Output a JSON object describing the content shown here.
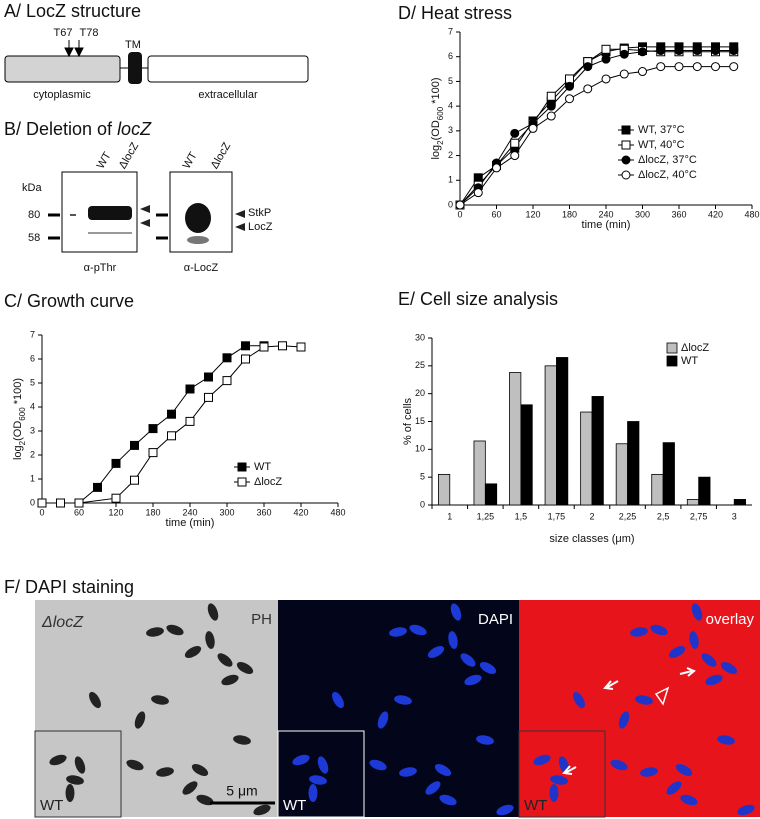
{
  "structure": {
    "title": "A/ LocZ structure",
    "sites": [
      "T67",
      "T78"
    ],
    "tm": "TM",
    "domains": [
      "cytoplasmic",
      "extracellular"
    ]
  },
  "deletion": {
    "title": "B/ Deletion of ",
    "title_gene": "locZ",
    "kda": "kDa",
    "markers": [
      "80",
      "58"
    ],
    "blots": [
      {
        "lanes": [
          "WT",
          "ΔlocZ"
        ],
        "antibody": "α-pThr"
      },
      {
        "lanes": [
          "WT",
          "ΔlocZ"
        ],
        "antibody": "α-LocZ"
      }
    ],
    "bands": [
      "StkP",
      "LocZ"
    ]
  },
  "dapi": {
    "title": "F/ DAPI staining",
    "strain": "ΔlocZ",
    "channels": [
      "PH",
      "DAPI",
      "overlay"
    ],
    "inset": "WT",
    "scale": "5 μm"
  },
  "chart_data": [
    {
      "type": "line",
      "title": "C/ Growth curve",
      "xlabel": "time (min)",
      "ylabel": [
        "log",
        "2",
        "(OD",
        "600",
        " *100)"
      ],
      "xlim": [
        0,
        480
      ],
      "xticks": [
        0,
        60,
        120,
        180,
        240,
        300,
        360,
        420,
        480
      ],
      "ylim": [
        0,
        7
      ],
      "yticks": [
        0,
        1,
        2,
        3,
        4,
        5,
        6,
        7
      ],
      "legend": "lower right",
      "series": [
        {
          "name": "WT",
          "color": "#000000",
          "marker": "square",
          "filled": true,
          "x": [
            0,
            30,
            60,
            90,
            120,
            150,
            180,
            210,
            240,
            270,
            300,
            330,
            360
          ],
          "values": [
            0,
            0,
            0,
            0.65,
            1.65,
            2.4,
            3.1,
            3.7,
            4.75,
            5.25,
            6.05,
            6.55,
            6.55
          ]
        },
        {
          "name": "ΔlocZ",
          "color": "#000000",
          "marker": "square",
          "filled": false,
          "x": [
            0,
            30,
            60,
            120,
            150,
            180,
            210,
            240,
            270,
            300,
            330,
            360,
            390,
            420
          ],
          "values": [
            0,
            0,
            0,
            0.2,
            0.95,
            2.1,
            2.8,
            3.4,
            4.4,
            5.1,
            6.0,
            6.5,
            6.55,
            6.5
          ]
        }
      ]
    },
    {
      "type": "line",
      "title": "D/ Heat stress",
      "xlabel": "time (min)",
      "ylabel": [
        "log",
        "2",
        "(OD",
        "600",
        " *100)"
      ],
      "xlim": [
        0,
        480
      ],
      "xticks": [
        0,
        60,
        120,
        180,
        240,
        300,
        360,
        420,
        480
      ],
      "ylim": [
        0,
        7
      ],
      "yticks": [
        0,
        1,
        2,
        3,
        4,
        5,
        6,
        7
      ],
      "legend": "right",
      "series": [
        {
          "name": "WT, 37°C",
          "color": "#000000",
          "marker": "square",
          "filled": true,
          "x": [
            0,
            30,
            60,
            90,
            120,
            150,
            180,
            210,
            240,
            270,
            300,
            330,
            360,
            390,
            420,
            450
          ],
          "values": [
            0,
            1.1,
            1.6,
            2.3,
            3.4,
            4.2,
            5.0,
            5.8,
            6.2,
            6.35,
            6.4,
            6.4,
            6.4,
            6.4,
            6.4,
            6.4
          ]
        },
        {
          "name": "WT, 40°C",
          "color": "#000000",
          "marker": "square",
          "filled": false,
          "x": [
            0,
            30,
            60,
            90,
            120,
            150,
            180,
            210,
            240,
            270,
            300,
            330,
            360,
            390,
            420,
            450
          ],
          "values": [
            0,
            0.8,
            1.6,
            2.5,
            3.3,
            4.4,
            5.1,
            5.8,
            6.3,
            6.3,
            6.25,
            6.2,
            6.2,
            6.2,
            6.2,
            6.2
          ]
        },
        {
          "name": "ΔlocZ, 37°C",
          "color": "#000000",
          "marker": "circle",
          "filled": true,
          "x": [
            0,
            30,
            60,
            90,
            120,
            150,
            180,
            210,
            240,
            270,
            300,
            330,
            360,
            390,
            420,
            450
          ],
          "values": [
            0,
            0.7,
            1.7,
            2.9,
            3.3,
            4.0,
            4.8,
            5.6,
            5.9,
            6.1,
            6.2,
            6.25,
            6.25,
            6.25,
            6.25,
            6.25
          ]
        },
        {
          "name": "ΔlocZ, 40°C",
          "color": "#000000",
          "marker": "circle",
          "filled": false,
          "x": [
            0,
            30,
            60,
            90,
            120,
            150,
            180,
            210,
            240,
            270,
            300,
            330,
            360,
            390,
            420,
            450
          ],
          "values": [
            0,
            0.5,
            1.5,
            2.0,
            3.1,
            3.6,
            4.3,
            4.7,
            5.1,
            5.3,
            5.4,
            5.6,
            5.6,
            5.6,
            5.6,
            5.6
          ]
        }
      ]
    },
    {
      "type": "bar",
      "title": "E/ Cell size analysis",
      "xlabel": "size classes (μm)",
      "ylabel": [
        "% of cells"
      ],
      "categories": [
        "1",
        "1,25",
        "1,5",
        "1,75",
        "2",
        "2,25",
        "2,5",
        "2,75",
        "3"
      ],
      "ylim": [
        0,
        30
      ],
      "yticks": [
        0,
        5,
        10,
        15,
        20,
        25,
        30
      ],
      "legend": "upper right",
      "series": [
        {
          "name": "ΔlocZ",
          "color": "#bfbfbf",
          "values": [
            5.5,
            11.5,
            23.8,
            25,
            16.7,
            11,
            5.5,
            1,
            0
          ]
        },
        {
          "name": "WT",
          "color": "#000000",
          "values": [
            0,
            3.8,
            18,
            26.5,
            19.5,
            15,
            11.2,
            5,
            1
          ]
        }
      ]
    }
  ]
}
